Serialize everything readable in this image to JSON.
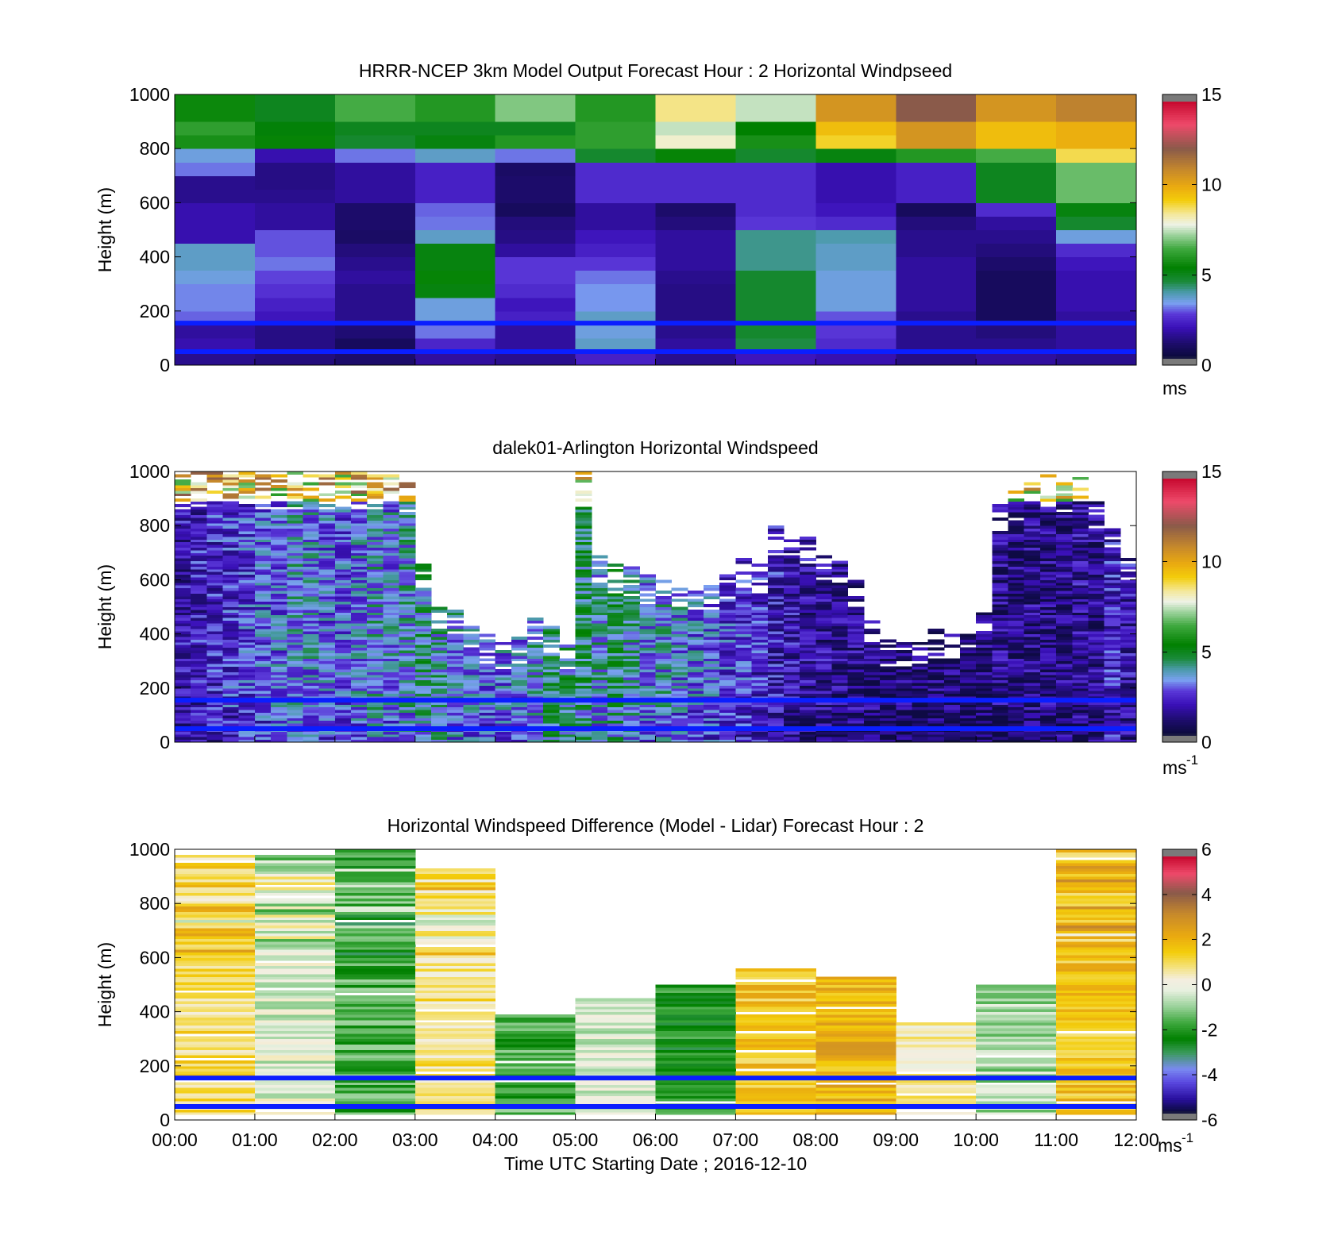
{
  "chart_data": [
    {
      "type": "heatmap",
      "title": "HRRR-NCEP 3km Model Output   Forecast Hour : 2 Horizontal Windpseed",
      "xlabel": "",
      "ylabel": "Height (m)",
      "xlim": [
        0,
        12
      ],
      "ylim": [
        0,
        1000
      ],
      "y_ticks": [
        0,
        200,
        400,
        600,
        800,
        1000
      ],
      "x_tick_labels": [],
      "colorbar": {
        "min": 0,
        "max": 15,
        "ticks": [
          0,
          5,
          10,
          15
        ],
        "unit": "ms",
        "unit_sup": "",
        "palette": "speed"
      },
      "reference_lines_m": [
        50,
        155
      ],
      "grid": "off",
      "cell_height_m": 50,
      "columns": [
        [
          1.6,
          2.0,
          1.8,
          3.1,
          3.3,
          3.3,
          3.6,
          3.8,
          3.8,
          2.0,
          2.0,
          2.0,
          1.6,
          1.6,
          3.2,
          3.6,
          5.8,
          6.2,
          5.6,
          5.6
        ],
        [
          1.4,
          1.5,
          1.5,
          2.2,
          2.4,
          2.7,
          2.9,
          3.2,
          3.0,
          3.0,
          1.8,
          1.8,
          1.6,
          1.5,
          1.5,
          2.0,
          5.5,
          5.3,
          5.0,
          5.0
        ],
        [
          1.2,
          1.0,
          1.3,
          1.6,
          1.6,
          1.6,
          1.8,
          1.6,
          1.4,
          1.1,
          1.2,
          1.2,
          1.8,
          1.8,
          1.8,
          3.2,
          4.8,
          5.0,
          6.5,
          6.5
        ],
        [
          1.8,
          2.5,
          3.2,
          3.6,
          3.6,
          5.2,
          5.5,
          5.2,
          5.2,
          3.8,
          3.2,
          3.1,
          2.4,
          2.4,
          2.4,
          3.8,
          5.2,
          5.0,
          6.0,
          6.0
        ],
        [
          1.6,
          1.8,
          1.8,
          2.4,
          2.2,
          2.6,
          2.8,
          2.8,
          1.8,
          1.5,
          1.4,
          1.0,
          1.2,
          1.2,
          1.1,
          3.2,
          6.0,
          5.0,
          7.0,
          7.0
        ],
        [
          2.4,
          3.8,
          3.6,
          3.8,
          3.4,
          3.4,
          3.2,
          2.8,
          2.4,
          2.2,
          1.8,
          1.8,
          2.6,
          2.6,
          2.6,
          4.8,
          6.2,
          6.2,
          6.0,
          6.0
        ],
        [
          1.6,
          1.8,
          1.6,
          1.5,
          1.5,
          1.5,
          1.6,
          1.8,
          1.8,
          1.8,
          1.4,
          1.2,
          2.6,
          2.6,
          2.6,
          5.5,
          8.0,
          7.5,
          8.5,
          8.5
        ],
        [
          2.2,
          4.6,
          4.8,
          4.8,
          4.8,
          4.8,
          4.8,
          4.2,
          4.2,
          4.2,
          2.8,
          2.6,
          2.6,
          2.6,
          2.6,
          4.8,
          5.8,
          5.4,
          7.5,
          7.5
        ],
        [
          2.0,
          2.6,
          2.8,
          3.0,
          3.6,
          3.6,
          3.6,
          3.8,
          3.8,
          4.0,
          2.6,
          2.2,
          2.0,
          2.0,
          2.0,
          5.2,
          9.0,
          9.5,
          10.5,
          10.5
        ],
        [
          1.5,
          1.6,
          1.6,
          1.6,
          1.8,
          1.8,
          1.8,
          1.8,
          1.6,
          1.6,
          1.4,
          1.0,
          2.4,
          2.4,
          2.4,
          6.0,
          10.5,
          10.5,
          12.0,
          12.0
        ],
        [
          1.8,
          1.6,
          1.4,
          1.0,
          1.0,
          1.0,
          1.0,
          1.2,
          1.4,
          1.6,
          1.8,
          2.6,
          5.0,
          5.0,
          5.0,
          6.5,
          9.5,
          9.5,
          10.5,
          10.5
        ],
        [
          1.6,
          1.8,
          1.8,
          1.8,
          2.0,
          2.0,
          2.0,
          2.2,
          2.6,
          3.6,
          4.8,
          5.2,
          6.8,
          6.8,
          6.8,
          8.8,
          9.8,
          9.8,
          11.0,
          11.0
        ]
      ]
    },
    {
      "type": "heatmap",
      "title": "dalek01-Arlington  Horizontal Windspeed",
      "xlabel": "",
      "ylabel": "Height (m)",
      "xlim": [
        0,
        12
      ],
      "ylim": [
        0,
        1000
      ],
      "y_ticks": [
        0,
        200,
        400,
        600,
        800,
        1000
      ],
      "x_tick_labels": [],
      "colorbar": {
        "min": 0,
        "max": 15,
        "ticks": [
          0,
          5,
          10,
          15
        ],
        "unit": "ms",
        "unit_sup": "-1",
        "palette": "speed"
      },
      "reference_lines_m": [
        50,
        155
      ],
      "grid": "off",
      "columns_per_hour": 4,
      "cell_height_m": 10,
      "column_tops_m": [
        1000,
        1000,
        1000,
        1000,
        1000,
        1000,
        1000,
        1000,
        1000,
        1000,
        1000,
        1000,
        990,
        990,
        960,
        660,
        500,
        500,
        460,
        400,
        380,
        400,
        460,
        430,
        380,
        1000,
        700,
        660,
        650,
        620,
        600,
        610,
        580,
        580,
        620,
        680,
        660,
        800,
        780,
        760,
        700,
        680,
        600,
        460,
        380,
        370,
        370,
        420,
        400,
        460,
        500,
        880,
        930,
        960,
        1000,
        960,
        990,
        900,
        800,
        700
      ],
      "column_means": [
        2.0,
        2.2,
        2.4,
        2.6,
        2.8,
        3.0,
        3.2,
        3.6,
        3.4,
        3.2,
        3.0,
        3.4,
        3.6,
        3.4,
        3.8,
        4.2,
        4.0,
        3.6,
        3.4,
        3.2,
        3.2,
        3.4,
        3.8,
        4.6,
        4.2,
        4.4,
        3.8,
        4.4,
        3.8,
        3.4,
        3.6,
        3.4,
        3.2,
        3.0,
        2.8,
        2.6,
        2.4,
        2.2,
        2.0,
        1.8,
        1.8,
        1.6,
        1.6,
        1.4,
        1.2,
        1.3,
        1.2,
        1.4,
        1.3,
        1.2,
        1.4,
        1.6,
        1.4,
        1.6,
        1.5,
        1.6,
        1.8,
        1.6,
        2.4,
        2.0
      ],
      "upper_layer_speed_range": [
        6,
        12
      ],
      "gaps_approx": "sparse above ~850 m; mostly clear between 05:00 and 09:00 above ~650 m"
    },
    {
      "type": "heatmap",
      "title": "Horizontal Windspeed Difference (Model - Lidar) Forecast Hour : 2",
      "xlabel": "Time UTC  Starting Date ; 2016-12-10",
      "ylabel": "Height (m)",
      "xlim": [
        0,
        12
      ],
      "ylim": [
        0,
        1000
      ],
      "y_ticks": [
        0,
        200,
        400,
        600,
        800,
        1000
      ],
      "x_tick_labels": [
        "00:00",
        "01:00",
        "02:00",
        "03:00",
        "04:00",
        "05:00",
        "06:00",
        "07:00",
        "08:00",
        "09:00",
        "10:00",
        "11:00",
        "12:00"
      ],
      "colorbar": {
        "min": -6,
        "max": 6,
        "ticks": [
          -6,
          -4,
          -2,
          0,
          2,
          4,
          6
        ],
        "unit": "ms",
        "unit_sup": "-1",
        "palette": "diff"
      },
      "reference_lines_m": [
        50,
        155
      ],
      "grid": "off",
      "cell_height_m": 10,
      "column_tops_m": [
        980,
        980,
        1000,
        930,
        390,
        450,
        500,
        560,
        530,
        360,
        500,
        1000
      ],
      "column_means": [
        1.0,
        -0.3,
        -1.6,
        0.8,
        -1.6,
        -0.4,
        -2.2,
        1.6,
        2.0,
        0.5,
        -0.8,
        1.6
      ]
    }
  ]
}
